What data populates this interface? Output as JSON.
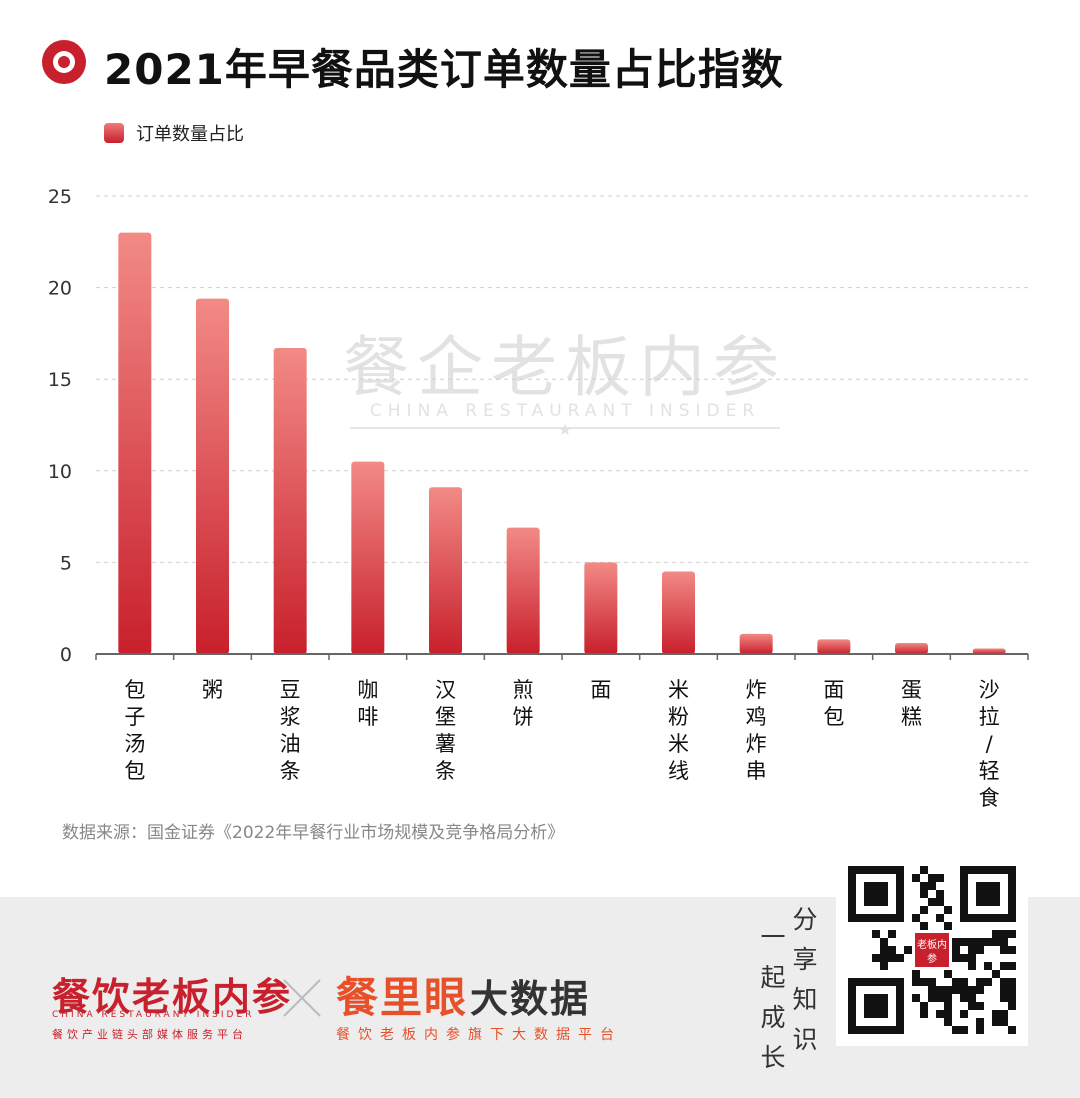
{
  "title": "2021年早餐品类订单数量占比指数",
  "legend_label": "订单数量占比",
  "watermark": {
    "cn": "餐企老板内参",
    "en": "CHINA RESTAURANT INSIDER"
  },
  "source": "数据来源：国金证券《2022年早餐行业市场规模及竞争格局分析》",
  "footer": {
    "brand1": "餐饮老板内参",
    "brand1_en": "CHINA RESTAURANT INSIDER",
    "brand1_sub": "餐饮产业链头部媒体服务平台",
    "brand2_a": "餐里眼",
    "brand2_b": "大数据",
    "brand2_sub": "餐饮老板内参旗下大数据平台",
    "slogan_col1": "一起成长",
    "slogan_col2": "分享知识",
    "qr_badge": "老板内参"
  },
  "colors": {
    "accent": "#c8202c",
    "bar_top": "#f08080",
    "bar_bottom": "#c8202c",
    "orange": "#e8502a"
  },
  "chart_data": {
    "type": "bar",
    "categories": [
      "包子汤包",
      "粥",
      "豆浆油条",
      "咖啡",
      "汉堡薯条",
      "煎饼",
      "面",
      "米粉米线",
      "炸鸡炸串",
      "面包",
      "蛋糕",
      "沙拉/轻食"
    ],
    "series": [
      {
        "name": "订单数量占比",
        "values": [
          23.0,
          19.4,
          16.7,
          10.5,
          9.1,
          6.9,
          5.0,
          4.5,
          1.1,
          0.8,
          0.6,
          0.3
        ]
      }
    ],
    "ylim": [
      0,
      25
    ],
    "yticks": [
      0,
      5,
      10,
      15,
      20,
      25
    ],
    "grid": true,
    "legend": "top-left"
  }
}
